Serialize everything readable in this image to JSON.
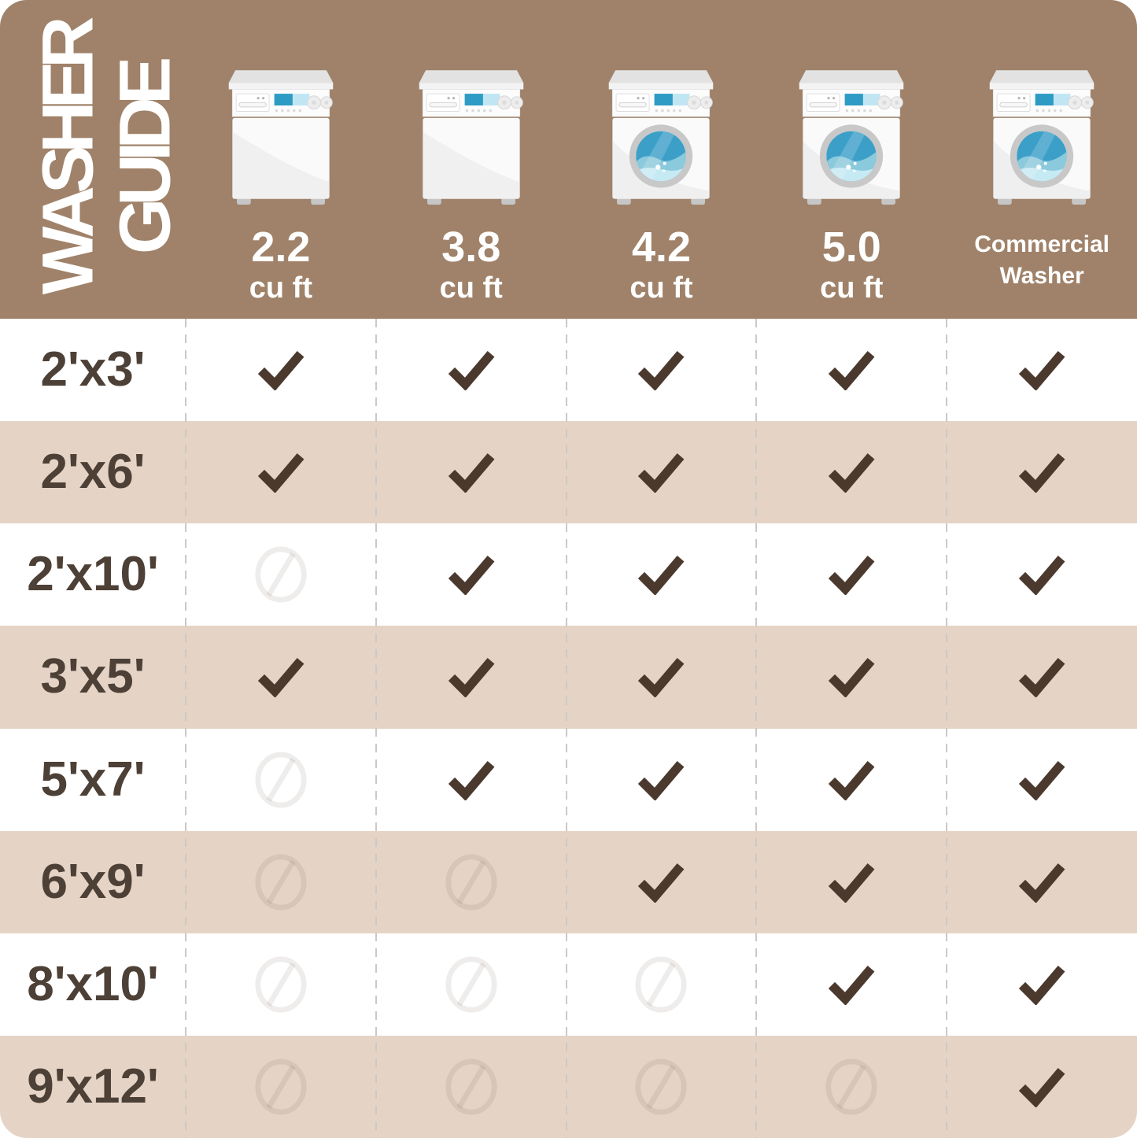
{
  "title": {
    "line1": "WASHER",
    "line2": "GUIDE"
  },
  "colors": {
    "header_bg": "#9f8269",
    "title_color": "#ffffff",
    "row_bg": "#ffffff",
    "row_alt": "#e5d4c6",
    "ink": "#4b392e",
    "label_ink": "#4d4036",
    "divider": "#cbc9c7",
    "water_dark": "#3c9fc8",
    "water_mid": "#8bc9dc",
    "water_light": "#c6eaf4"
  },
  "columns": [
    {
      "id": "2.2",
      "washer_type": "top-load",
      "capacity": "2.2",
      "unit": "cu ft"
    },
    {
      "id": "3.8",
      "washer_type": "top-load",
      "capacity": "3.8",
      "unit": "cu ft"
    },
    {
      "id": "4.2",
      "washer_type": "front-load",
      "capacity": "4.2",
      "unit": "cu ft"
    },
    {
      "id": "5.0",
      "washer_type": "front-load",
      "capacity": "5.0",
      "unit": "cu ft"
    },
    {
      "id": "commercial",
      "washer_type": "front-load",
      "name_lines": [
        "Commercial",
        "Washer"
      ]
    }
  ],
  "rows": [
    {
      "size": "2'x3'",
      "cells": [
        "check",
        "check",
        "check",
        "check",
        "check"
      ]
    },
    {
      "size": "2'x6'",
      "cells": [
        "check",
        "check",
        "check",
        "check",
        "check"
      ]
    },
    {
      "size": "2'x10'",
      "cells": [
        "no",
        "check",
        "check",
        "check",
        "check"
      ]
    },
    {
      "size": "3'x5'",
      "cells": [
        "check",
        "check",
        "check",
        "check",
        "check"
      ]
    },
    {
      "size": "5'x7'",
      "cells": [
        "no",
        "check",
        "check",
        "check",
        "check"
      ]
    },
    {
      "size": "6'x9'",
      "cells": [
        "no",
        "no",
        "check",
        "check",
        "check"
      ]
    },
    {
      "size": "8'x10'",
      "cells": [
        "no",
        "no",
        "no",
        "check",
        "check"
      ]
    },
    {
      "size": "9'x12'",
      "cells": [
        "no",
        "no",
        "no",
        "no",
        "check"
      ]
    }
  ],
  "icons": {
    "check": "check-icon",
    "no": "prohibited-icon"
  },
  "chart_data": {
    "type": "table",
    "title": "WASHER GUIDE",
    "columns": [
      "2.2 cu ft",
      "3.8 cu ft",
      "4.2 cu ft",
      "5.0 cu ft",
      "Commercial Washer"
    ],
    "row_labels": [
      "2'x3'",
      "2'x6'",
      "2'x10'",
      "3'x5'",
      "5'x7'",
      "6'x9'",
      "8'x10'",
      "9'x12'"
    ],
    "values": [
      [
        "check",
        "check",
        "check",
        "check",
        "check"
      ],
      [
        "check",
        "check",
        "check",
        "check",
        "check"
      ],
      [
        "no",
        "check",
        "check",
        "check",
        "check"
      ],
      [
        "check",
        "check",
        "check",
        "check",
        "check"
      ],
      [
        "no",
        "check",
        "check",
        "check",
        "check"
      ],
      [
        "no",
        "no",
        "check",
        "check",
        "check"
      ],
      [
        "no",
        "no",
        "no",
        "check",
        "check"
      ],
      [
        "no",
        "no",
        "no",
        "no",
        "check"
      ]
    ],
    "layout": {
      "header_row": "washer icons with capacity labels",
      "first_column": "rug sizes",
      "alternating_row_shading": true
    }
  }
}
